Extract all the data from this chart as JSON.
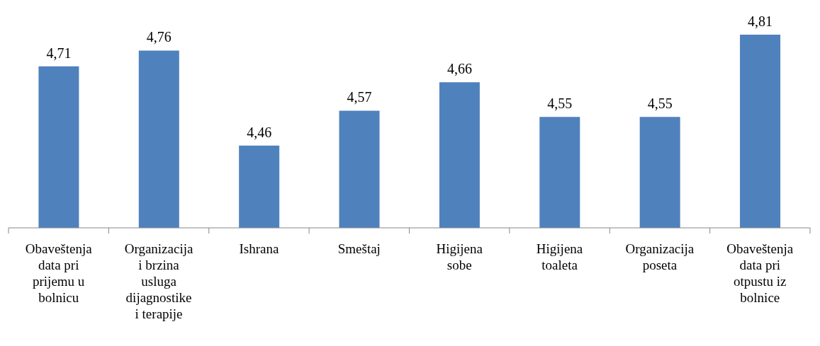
{
  "chart_data": {
    "type": "bar",
    "categories": [
      "Obaveštenja data pri prijemu u bolnicu",
      "Organizacija i brzina usluga dijagnostike i terapije",
      "Ishrana",
      "Smeštaj",
      "Higijena sobe",
      "Higijena toaleta",
      "Organizacija poseta",
      "Obaveštenja data pri otpustu iz bolnice"
    ],
    "values": [
      4.71,
      4.76,
      4.46,
      4.57,
      4.66,
      4.55,
      4.55,
      4.81
    ],
    "value_labels": [
      "4,71",
      "4,76",
      "4,46",
      "4,57",
      "4,66",
      "4,55",
      "4,55",
      "4,81"
    ],
    "color": "#4f81bd",
    "ylim": [
      4.2,
      4.81
    ],
    "tick_labels": "x",
    "grid": false,
    "legend": false
  }
}
